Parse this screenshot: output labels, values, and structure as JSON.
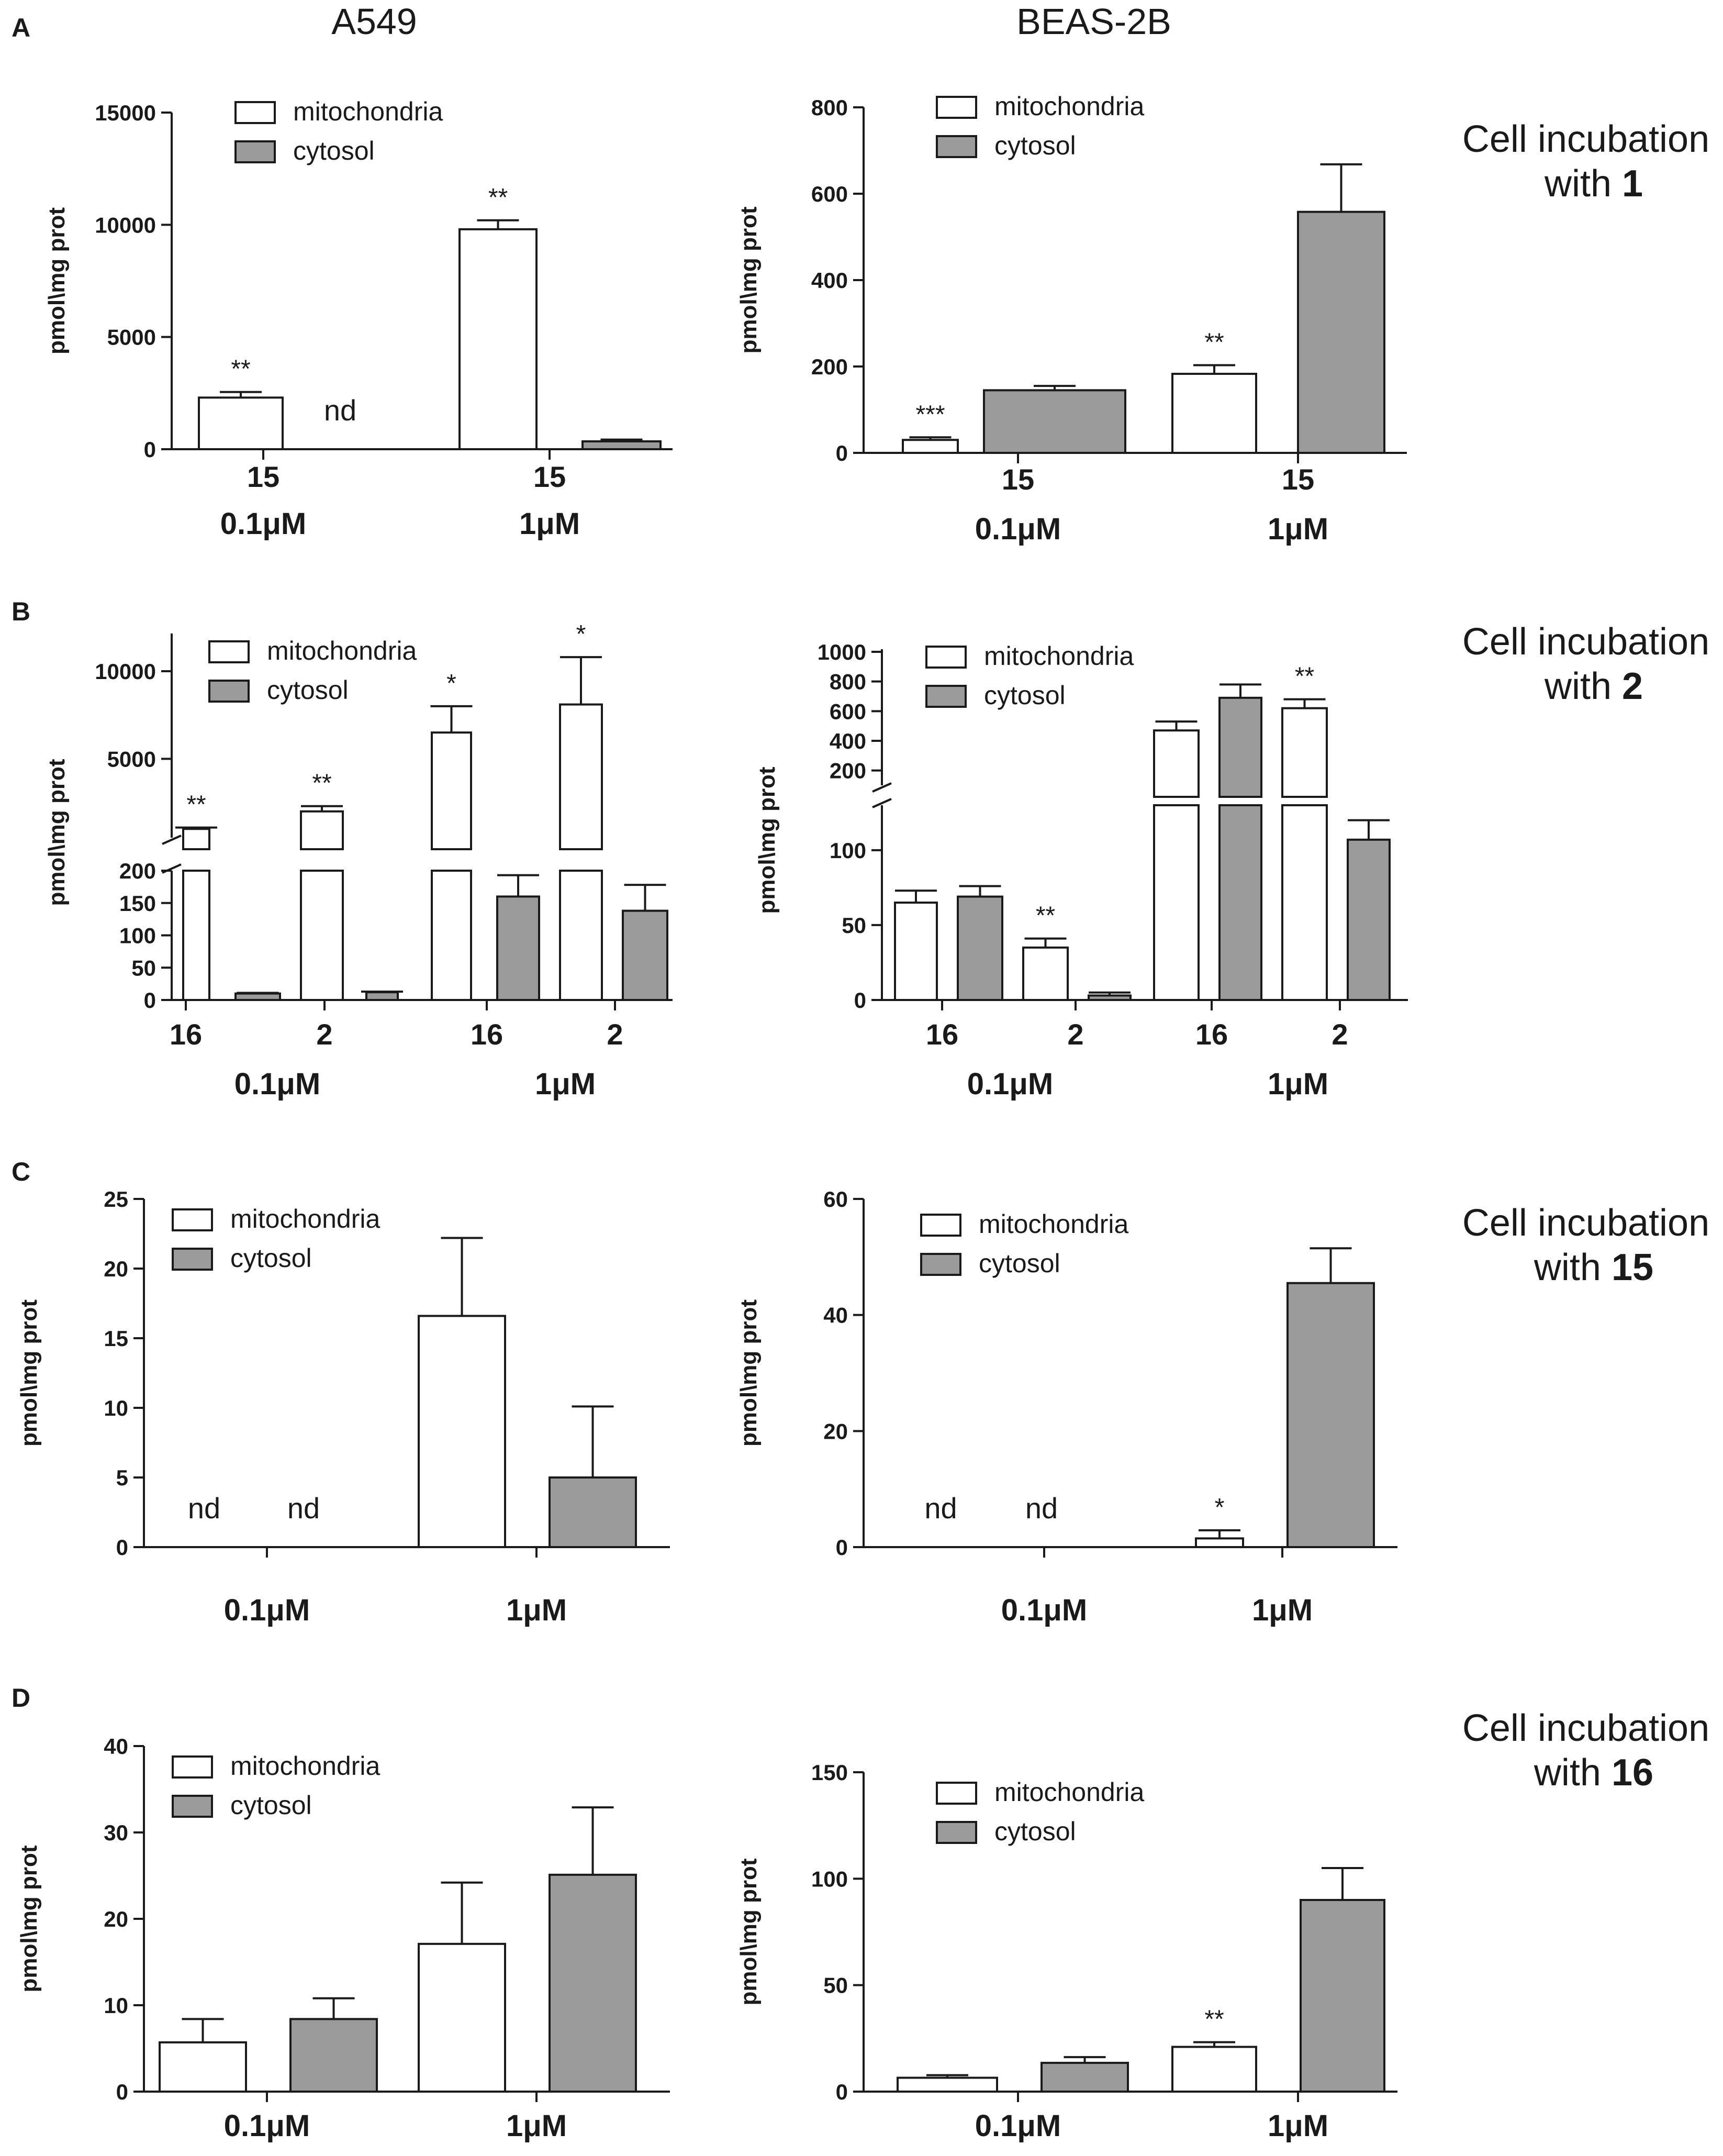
{
  "column_headers": [
    "A549",
    "BEAS-2B"
  ],
  "captions": [
    {
      "panel": "A",
      "line1": "Cell incubation",
      "line2_prefix": "with ",
      "line2_num": "1"
    },
    {
      "panel": "B",
      "line1": "Cell incubation",
      "line2_prefix": "with ",
      "line2_num": "2"
    },
    {
      "panel": "C",
      "line1": "Cell incubation",
      "line2_prefix": "with ",
      "line2_num": "15"
    },
    {
      "panel": "D",
      "line1": "Cell incubation",
      "line2_prefix": "with ",
      "line2_num": "16"
    }
  ],
  "colors": {
    "mitochondria": "#ffffff",
    "cytosol": "#9b9b9b",
    "stroke": "#1a1a1a"
  },
  "chart_data": [
    {
      "panel": "A",
      "column": "A549",
      "type": "bar",
      "ylabel": "pmol\\mg prot",
      "legend": [
        "mitochondria",
        "cytosol"
      ],
      "ylim": [
        0,
        15000
      ],
      "yticks": [
        0,
        5000,
        10000,
        15000
      ],
      "groups": [
        {
          "label": "0.1μM",
          "sub": "15",
          "mito": {
            "value": 2300,
            "err": 250,
            "annot": "**"
          },
          "cyto": {
            "value": null,
            "annot": "nd"
          }
        },
        {
          "label": "1μM",
          "sub": "15",
          "mito": {
            "value": 9800,
            "err": 400,
            "annot": "**"
          },
          "cyto": {
            "value": 350,
            "err": 80,
            "annot": ""
          }
        }
      ]
    },
    {
      "panel": "A",
      "column": "BEAS-2B",
      "type": "bar",
      "ylabel": "pmol\\mg prot",
      "legend": [
        "mitochondria",
        "cytosol"
      ],
      "ylim": [
        0,
        800
      ],
      "yticks": [
        0,
        200,
        400,
        600,
        800
      ],
      "groups": [
        {
          "label": "0.1μM",
          "sub": "15",
          "mito": {
            "value": 30,
            "err": 6,
            "annot": "***"
          },
          "cyto": {
            "value": 145,
            "err": 10,
            "annot": ""
          }
        },
        {
          "label": "1μM",
          "sub": "15",
          "mito": {
            "value": 183,
            "err": 20,
            "annot": "**"
          },
          "cyto": {
            "value": 558,
            "err": 110,
            "annot": ""
          }
        }
      ]
    },
    {
      "panel": "B",
      "column": "A549",
      "type": "bar",
      "broken_axis": true,
      "ylabel": "pmol\\mg prot",
      "legend": [
        "mitochondria",
        "cytosol"
      ],
      "lower": {
        "ylim": [
          0,
          200
        ],
        "yticks": [
          0,
          50,
          100,
          150,
          200
        ]
      },
      "upper": {
        "ylim": [
          500,
          12000
        ],
        "yticks": [
          5000,
          10000
        ]
      },
      "groups": [
        {
          "label": "0.1μM",
          "subs": [
            "16",
            "2"
          ],
          "bars": [
            {
              "mito": {
                "value": 1000,
                "err": 80,
                "annot": "**"
              },
              "cyto": {
                "value": 10,
                "err": 1,
                "annot": ""
              }
            },
            {
              "mito": {
                "value": 2000,
                "err": 300,
                "annot": "**"
              },
              "cyto": {
                "value": 12,
                "err": 1,
                "annot": ""
              }
            }
          ]
        },
        {
          "label": "1μM",
          "subs": [
            "16",
            "2"
          ],
          "bars": [
            {
              "mito": {
                "value": 6500,
                "err": 1500,
                "annot": "*"
              },
              "cyto": {
                "value": 160,
                "err": 33,
                "annot": ""
              }
            },
            {
              "mito": {
                "value": 8100,
                "err": 2700,
                "annot": "*"
              },
              "cyto": {
                "value": 138,
                "err": 40,
                "annot": ""
              }
            }
          ]
        }
      ]
    },
    {
      "panel": "B",
      "column": "BEAS-2B",
      "type": "bar",
      "broken_axis": true,
      "ylabel": "pmol\\mg prot",
      "legend": [
        "mitochondria",
        "cytosol"
      ],
      "lower": {
        "ylim": [
          0,
          130
        ],
        "yticks": [
          0,
          50,
          100
        ]
      },
      "upper": {
        "ylim": [
          100,
          1000
        ],
        "yticks": [
          200,
          400,
          600,
          800,
          1000
        ]
      },
      "groups": [
        {
          "label": "0.1μM",
          "subs": [
            "16",
            "2"
          ],
          "bars": [
            {
              "mito": {
                "value": 65,
                "err": 8,
                "annot": ""
              },
              "cyto": {
                "value": 69,
                "err": 7,
                "annot": ""
              }
            },
            {
              "mito": {
                "value": 35,
                "err": 6,
                "annot": "**"
              },
              "cyto": {
                "value": 3,
                "err": 2,
                "annot": ""
              }
            }
          ]
        },
        {
          "label": "1μM",
          "subs": [
            "16",
            "2"
          ],
          "bars": [
            {
              "mito": {
                "value": 470,
                "err": 60,
                "annot": ""
              },
              "cyto": {
                "value": 690,
                "err": 90,
                "annot": ""
              }
            },
            {
              "mito": {
                "value": 620,
                "err": 60,
                "annot": "**"
              },
              "cyto": {
                "value": 107,
                "err": 13,
                "annot": ""
              }
            }
          ]
        }
      ]
    },
    {
      "panel": "C",
      "column": "A549",
      "type": "bar",
      "ylabel": "pmol\\mg prot",
      "legend": [
        "mitochondria",
        "cytosol"
      ],
      "ylim": [
        0,
        25
      ],
      "yticks": [
        0,
        5,
        10,
        15,
        20,
        25
      ],
      "groups": [
        {
          "label": "0.1μM",
          "mito": {
            "value": null,
            "annot": "nd"
          },
          "cyto": {
            "value": null,
            "annot": "nd"
          }
        },
        {
          "label": "1μM",
          "mito": {
            "value": 16.6,
            "err": 5.6,
            "annot": ""
          },
          "cyto": {
            "value": 5.0,
            "err": 5.1,
            "annot": ""
          }
        }
      ]
    },
    {
      "panel": "C",
      "column": "BEAS-2B",
      "type": "bar",
      "ylabel": "pmol\\mg prot",
      "legend": [
        "mitochondria",
        "cytosol"
      ],
      "ylim": [
        0,
        60
      ],
      "yticks": [
        0,
        20,
        40,
        60
      ],
      "groups": [
        {
          "label": "0.1μM",
          "mito": {
            "value": null,
            "annot": "nd"
          },
          "cyto": {
            "value": null,
            "annot": "nd"
          }
        },
        {
          "label": "1μM",
          "mito": {
            "value": 1.5,
            "err": 1.4,
            "annot": "*"
          },
          "cyto": {
            "value": 45.5,
            "err": 6,
            "annot": ""
          }
        }
      ]
    },
    {
      "panel": "D",
      "column": "A549",
      "type": "bar",
      "ylabel": "pmol\\mg prot",
      "legend": [
        "mitochondria",
        "cytosol"
      ],
      "ylim": [
        0,
        40
      ],
      "yticks": [
        0,
        10,
        20,
        30,
        40
      ],
      "groups": [
        {
          "label": "0.1μM",
          "mito": {
            "value": 5.7,
            "err": 2.7,
            "annot": ""
          },
          "cyto": {
            "value": 8.4,
            "err": 2.4,
            "annot": ""
          }
        },
        {
          "label": "1μM",
          "mito": {
            "value": 17.1,
            "err": 7.1,
            "annot": ""
          },
          "cyto": {
            "value": 25.1,
            "err": 7.8,
            "annot": ""
          }
        }
      ]
    },
    {
      "panel": "D",
      "column": "BEAS-2B",
      "type": "bar",
      "ylabel": "pmol\\mg prot",
      "legend": [
        "mitochondria",
        "cytosol"
      ],
      "ylim": [
        0,
        150
      ],
      "yticks": [
        0,
        50,
        100,
        150
      ],
      "groups": [
        {
          "label": "0.1μM",
          "mito": {
            "value": 6.5,
            "err": 1.2,
            "annot": ""
          },
          "cyto": {
            "value": 13.5,
            "err": 2.7,
            "annot": ""
          }
        },
        {
          "label": "1μM",
          "mito": {
            "value": 21,
            "err": 2.2,
            "annot": "**"
          },
          "cyto": {
            "value": 90,
            "err": 15,
            "annot": ""
          }
        }
      ]
    }
  ]
}
